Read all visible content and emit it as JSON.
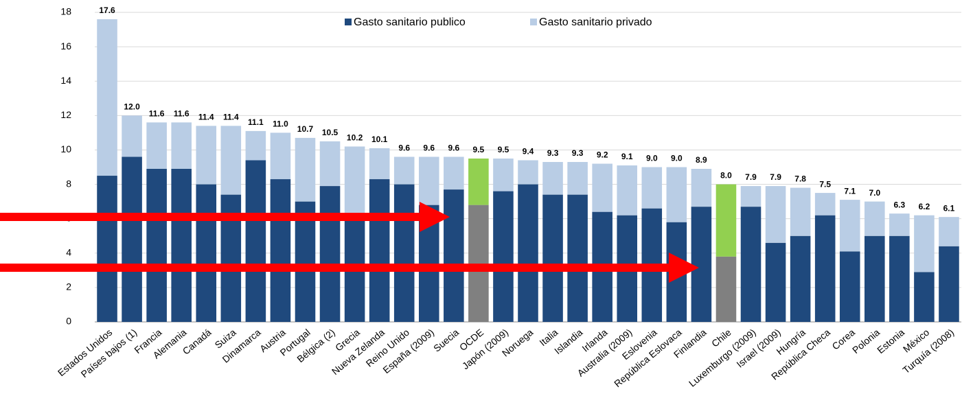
{
  "chart_data": {
    "type": "stacked_bar",
    "categories": [
      "Estados Unidos",
      "Países bajos (1)",
      "Francia",
      "Alemania",
      "Canadá",
      "Suiza",
      "Dinamarca",
      "Austria",
      "Portugal",
      "Bélgica (2)",
      "Grecia",
      "Nueva Zelanda",
      "Reino Unido",
      "España (2009)",
      "Suecia",
      "OCDE",
      "Japón (2009)",
      "Noruega",
      "Italia",
      "Islandia",
      "Irlanda",
      "Australia (2009)",
      "Eslovenia",
      "República Eslovaca",
      "Finlandia",
      "Chile",
      "Luxemburgo (2009)",
      "Israel (2009)",
      "Hungría",
      "República Checa",
      "Corea",
      "Polonia",
      "Estonia",
      "México",
      "Turquía (2008)"
    ],
    "series": [
      {
        "name": "Gasto sanitario publico",
        "color": "#1f497d",
        "colors": [
          "#1f497d",
          "#1f497d",
          "#1f497d",
          "#1f497d",
          "#1f497d",
          "#1f497d",
          "#1f497d",
          "#1f497d",
          "#1f497d",
          "#1f497d",
          "#1f497d",
          "#1f497d",
          "#1f497d",
          "#1f497d",
          "#1f497d",
          "#808080",
          "#1f497d",
          "#1f497d",
          "#1f497d",
          "#1f497d",
          "#1f497d",
          "#1f497d",
          "#1f497d",
          "#1f497d",
          "#1f497d",
          "#808080",
          "#1f497d",
          "#1f497d",
          "#1f497d",
          "#1f497d",
          "#1f497d",
          "#1f497d",
          "#1f497d",
          "#1f497d",
          "#1f497d"
        ],
        "values": [
          8.5,
          9.6,
          8.9,
          8.9,
          8.0,
          7.4,
          9.4,
          8.3,
          7.0,
          7.9,
          6.1,
          8.3,
          8.0,
          6.8,
          7.7,
          6.8,
          7.6,
          8.0,
          7.4,
          7.4,
          6.4,
          6.2,
          6.6,
          5.8,
          6.7,
          3.8,
          6.7,
          4.6,
          5.0,
          6.2,
          4.1,
          5.0,
          5.0,
          2.9,
          4.4
        ]
      },
      {
        "name": "Gasto sanitario privado",
        "color": "#b9cde5",
        "colors": [
          "#b9cde5",
          "#b9cde5",
          "#b9cde5",
          "#b9cde5",
          "#b9cde5",
          "#b9cde5",
          "#b9cde5",
          "#b9cde5",
          "#b9cde5",
          "#b9cde5",
          "#b9cde5",
          "#b9cde5",
          "#b9cde5",
          "#b9cde5",
          "#b9cde5",
          "#92d050",
          "#b9cde5",
          "#b9cde5",
          "#b9cde5",
          "#b9cde5",
          "#b9cde5",
          "#b9cde5",
          "#b9cde5",
          "#b9cde5",
          "#b9cde5",
          "#92d050",
          "#b9cde5",
          "#b9cde5",
          "#b9cde5",
          "#b9cde5",
          "#b9cde5",
          "#b9cde5",
          "#b9cde5",
          "#b9cde5",
          "#b9cde5"
        ],
        "values": [
          9.1,
          2.4,
          2.7,
          2.7,
          3.4,
          4.0,
          1.7,
          2.7,
          3.7,
          2.6,
          4.1,
          1.8,
          1.6,
          2.8,
          1.9,
          2.7,
          1.9,
          1.4,
          1.9,
          1.9,
          2.8,
          2.9,
          2.4,
          3.2,
          2.2,
          4.2,
          1.2,
          3.3,
          2.8,
          1.3,
          3.0,
          2.0,
          1.3,
          3.3,
          1.7
        ]
      }
    ],
    "totals": [
      17.6,
      12.0,
      11.6,
      11.6,
      11.4,
      11.4,
      11.1,
      11.0,
      10.7,
      10.5,
      10.2,
      10.1,
      9.6,
      9.6,
      9.6,
      9.5,
      9.5,
      9.4,
      9.3,
      9.3,
      9.2,
      9.1,
      9.0,
      9.0,
      8.9,
      8.0,
      7.9,
      7.9,
      7.8,
      7.5,
      7.1,
      7.0,
      6.3,
      6.2,
      6.1
    ],
    "total_labels": [
      "17.6",
      "12.0",
      "11.6",
      "11.6",
      "11.4",
      "11.4",
      "11.1",
      "11.0",
      "10.7",
      "10.5",
      "10.2",
      "10.1",
      "9.6",
      "9.6",
      "9.6",
      "9.5",
      "9.5",
      "9.4",
      "9.3",
      "9.3",
      "9.2",
      "9.1",
      "9.0",
      "9.0",
      "8.9",
      "8.0",
      "7.9",
      "7.9",
      "7.8",
      "7.5",
      "7.1",
      "7.0",
      "6.3",
      "6.2",
      "6.1"
    ],
    "ylim": [
      0,
      18
    ],
    "yticks": [
      0,
      2,
      4,
      6,
      8,
      10,
      12,
      14,
      16,
      18
    ],
    "grid": true,
    "legend": "top"
  }
}
